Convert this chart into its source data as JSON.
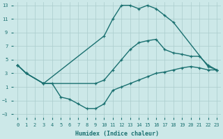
{
  "background_color": "#cce8e8",
  "grid_color": "#aacccc",
  "line_color": "#1a7070",
  "xlabel": "Humidex (Indice chaleur)",
  "xlim": [
    -0.5,
    23.5
  ],
  "ylim": [
    -3.5,
    13.5
  ],
  "xticks": [
    0,
    1,
    2,
    3,
    4,
    5,
    6,
    7,
    8,
    9,
    10,
    11,
    12,
    13,
    14,
    15,
    16,
    17,
    18,
    19,
    20,
    21,
    22,
    23
  ],
  "yticks": [
    -3,
    -1,
    1,
    3,
    5,
    7,
    9,
    11,
    13
  ],
  "line_top_x": [
    0,
    1,
    3,
    10,
    11,
    12,
    13,
    14,
    15,
    16,
    17,
    18,
    22,
    23
  ],
  "line_top_y": [
    4.2,
    3.0,
    1.5,
    8.5,
    11.0,
    13.0,
    13.0,
    12.5,
    13.0,
    12.5,
    11.5,
    10.5,
    4.0,
    3.5
  ],
  "line_mid_x": [
    0,
    1,
    3,
    9,
    10,
    11,
    12,
    13,
    14,
    15,
    16,
    17,
    18,
    19,
    20,
    21,
    22,
    23
  ],
  "line_mid_y": [
    4.2,
    3.0,
    1.5,
    1.5,
    2.0,
    3.5,
    5.0,
    6.5,
    7.5,
    7.8,
    8.0,
    6.5,
    6.0,
    5.8,
    5.5,
    5.5,
    4.2,
    3.5
  ],
  "line_bot_x": [
    0,
    1,
    3,
    4,
    5,
    6,
    7,
    8,
    9,
    10,
    11,
    12,
    13,
    14,
    15,
    16,
    17,
    18,
    19,
    20,
    21,
    22,
    23
  ],
  "line_bot_y": [
    4.2,
    3.0,
    1.5,
    1.5,
    -0.5,
    -0.8,
    -1.5,
    -2.2,
    -2.2,
    -1.5,
    0.5,
    1.0,
    1.5,
    2.0,
    2.5,
    3.0,
    3.2,
    3.5,
    3.8,
    4.0,
    3.8,
    3.5,
    3.5
  ],
  "marker_size": 3.5,
  "marker_ew": 0.9,
  "line_width": 1.0
}
